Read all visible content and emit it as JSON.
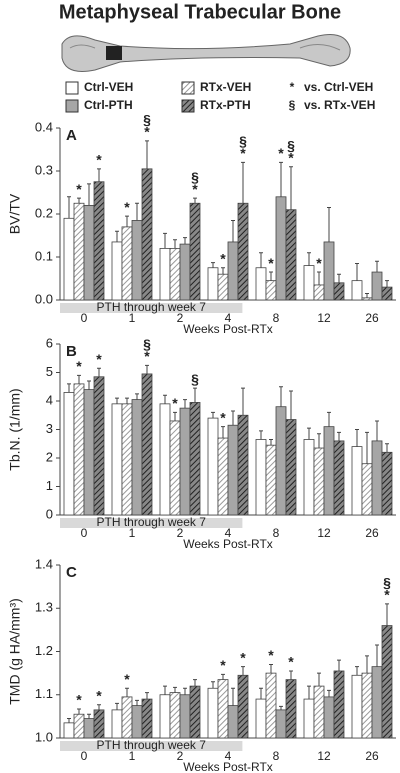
{
  "title": "Metaphyseal Trabecular Bone",
  "legend_notes": [
    {
      "symbol": "*",
      "text": "vs. Ctrl-VEH"
    },
    {
      "symbol": "§",
      "text": "vs. RTx-VEH"
    }
  ],
  "chart_data": [
    {
      "type": "bar",
      "panel": "A",
      "y_label": "BV/TV",
      "x_label": "Weeks Post-RTx",
      "shaded_label": "PTH through week 7",
      "categories": [
        "0",
        "1",
        "2",
        "4",
        "8",
        "12",
        "26"
      ],
      "ylim": [
        0,
        0.4
      ],
      "yticks": [
        {
          "value": 0,
          "label": "0.0"
        },
        0.1,
        0.2,
        0.3,
        0.4
      ],
      "series": [
        {
          "name": "Ctrl-VEH",
          "color": "#ffffff",
          "hatch": false,
          "values": [
            0.19,
            0.135,
            0.12,
            0.075,
            0.075,
            0.08,
            0.045
          ],
          "errors": [
            0.05,
            0.025,
            0.035,
            0.012,
            0.035,
            0.03,
            0.04
          ],
          "annotations": [
            null,
            null,
            null,
            null,
            null,
            null,
            null
          ]
        },
        {
          "name": "RTx-VEH",
          "color": "#d0d0d0",
          "hatch": true,
          "values": [
            0.225,
            0.17,
            0.12,
            0.06,
            0.045,
            0.035,
            0.005
          ],
          "errors": [
            0.012,
            0.025,
            0.02,
            0.015,
            0.02,
            0.03,
            0.01
          ],
          "annotations": [
            [
              "*"
            ],
            [
              "*"
            ],
            null,
            [
              "*"
            ],
            [
              "*"
            ],
            [
              "*"
            ],
            null
          ]
        },
        {
          "name": "Ctrl-PTH",
          "color": "#a6a6a6",
          "hatch": false,
          "values": [
            0.22,
            0.185,
            0.13,
            0.135,
            0.24,
            0.135,
            0.065
          ],
          "errors": [
            0.05,
            0.04,
            0.015,
            0.05,
            0.08,
            0.08,
            0.025
          ],
          "annotations": [
            null,
            null,
            null,
            null,
            [
              "*"
            ],
            null,
            null
          ]
        },
        {
          "name": "RTx-PTH",
          "color": "#555555",
          "hatch": true,
          "values": [
            0.275,
            0.305,
            0.225,
            0.225,
            0.21,
            0.04,
            0.03
          ],
          "errors": [
            0.03,
            0.065,
            0.012,
            0.095,
            0.1,
            0.02,
            0.015
          ],
          "annotations": [
            [
              "*"
            ],
            [
              "§",
              "*"
            ],
            [
              "§",
              "*"
            ],
            [
              "§",
              "*"
            ],
            [
              "§",
              "*"
            ],
            null,
            null
          ]
        }
      ]
    },
    {
      "type": "bar",
      "panel": "B",
      "y_label": "Tb.N. (1/mm)",
      "x_label": "Weeks Post-RTx",
      "shaded_label": "PTH through week 7",
      "categories": [
        "0",
        "1",
        "2",
        "4",
        "8",
        "12",
        "26"
      ],
      "ylim": [
        0,
        6
      ],
      "yticks": [
        0,
        1,
        2,
        3,
        4,
        5,
        6
      ],
      "series": [
        {
          "name": "Ctrl-VEH",
          "color": "#ffffff",
          "hatch": false,
          "values": [
            4.3,
            3.9,
            3.9,
            3.4,
            2.65,
            2.65,
            2.4
          ],
          "errors": [
            0.3,
            0.2,
            0.3,
            0.2,
            0.3,
            0.4,
            0.6
          ],
          "annotations": [
            null,
            null,
            null,
            null,
            null,
            null,
            null
          ]
        },
        {
          "name": "RTx-VEH",
          "color": "#d0d0d0",
          "hatch": true,
          "values": [
            4.6,
            3.9,
            3.3,
            2.7,
            2.45,
            2.35,
            1.8
          ],
          "errors": [
            0.3,
            0.2,
            0.3,
            0.4,
            0.2,
            0.5,
            1.1
          ],
          "annotations": [
            [
              "*"
            ],
            null,
            [
              "*"
            ],
            [
              "*"
            ],
            null,
            null,
            null
          ]
        },
        {
          "name": "Ctrl-PTH",
          "color": "#a6a6a6",
          "hatch": false,
          "values": [
            4.4,
            4.05,
            3.75,
            3.15,
            3.8,
            3.1,
            2.6
          ],
          "errors": [
            0.3,
            0.2,
            0.3,
            0.5,
            0.7,
            0.5,
            0.7
          ],
          "annotations": [
            null,
            null,
            null,
            null,
            null,
            null,
            null
          ]
        },
        {
          "name": "RTx-PTH",
          "color": "#555555",
          "hatch": true,
          "values": [
            4.85,
            4.95,
            3.95,
            3.5,
            3.35,
            2.6,
            2.2
          ],
          "errors": [
            0.3,
            0.3,
            0.5,
            0.95,
            1.0,
            0.3,
            0.3
          ],
          "annotations": [
            [
              "*"
            ],
            [
              "§",
              "*"
            ],
            [
              "§"
            ],
            null,
            null,
            null,
            null
          ]
        }
      ]
    },
    {
      "type": "bar",
      "panel": "C",
      "y_label": "TMD (g HA/mm³)",
      "x_label": "Weeks Post-RTx",
      "shaded_label": "PTH through week 7",
      "categories": [
        "0",
        "1",
        "2",
        "4",
        "8",
        "12",
        "26"
      ],
      "ylim": [
        1,
        1.4
      ],
      "yticks": [
        {
          "value": 1,
          "label": "1.0"
        },
        1.1,
        1.2,
        1.3,
        1.4
      ],
      "series": [
        {
          "name": "Ctrl-VEH",
          "color": "#ffffff",
          "hatch": false,
          "values": [
            1.035,
            1.065,
            1.1,
            1.115,
            1.09,
            1.09,
            1.145
          ],
          "errors": [
            0.01,
            0.015,
            0.02,
            0.015,
            0.025,
            0.03,
            0.02
          ],
          "annotations": [
            null,
            null,
            null,
            null,
            null,
            null,
            null
          ]
        },
        {
          "name": "RTx-VEH",
          "color": "#d0d0d0",
          "hatch": true,
          "values": [
            1.055,
            1.095,
            1.105,
            1.135,
            1.15,
            1.12,
            1.15
          ],
          "errors": [
            0.012,
            0.02,
            0.012,
            0.012,
            0.02,
            0.03,
            0.04
          ],
          "annotations": [
            [
              "*"
            ],
            [
              "*"
            ],
            null,
            [
              "*"
            ],
            [
              "*"
            ],
            null,
            null
          ]
        },
        {
          "name": "Ctrl-PTH",
          "color": "#a6a6a6",
          "hatch": false,
          "values": [
            1.045,
            1.075,
            1.1,
            1.075,
            1.065,
            1.095,
            1.165
          ],
          "errors": [
            0.01,
            0.012,
            0.015,
            0.04,
            0.008,
            0.015,
            0.05
          ],
          "annotations": [
            null,
            null,
            null,
            null,
            null,
            null,
            null
          ]
        },
        {
          "name": "RTx-PTH",
          "color": "#555555",
          "hatch": true,
          "values": [
            1.065,
            1.09,
            1.12,
            1.145,
            1.135,
            1.155,
            1.26
          ],
          "errors": [
            0.012,
            0.015,
            0.015,
            0.02,
            0.02,
            0.025,
            0.05
          ],
          "annotations": [
            [
              "*"
            ],
            null,
            null,
            [
              "*"
            ],
            [
              "*"
            ],
            null,
            [
              "§",
              "*"
            ]
          ]
        }
      ]
    }
  ]
}
